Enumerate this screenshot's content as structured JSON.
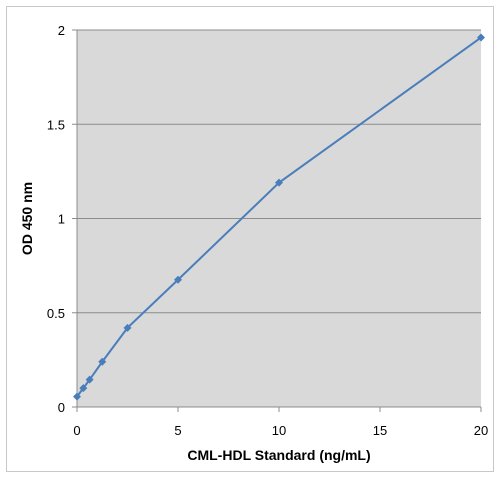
{
  "chart_data": {
    "type": "line",
    "title": "",
    "xlabel": "CML-HDL Standard (ng/mL)",
    "ylabel": "OD 450 nm",
    "xlim": [
      0,
      20
    ],
    "ylim": [
      0,
      2
    ],
    "xticks": [
      0,
      5,
      10,
      15,
      20
    ],
    "yticks": [
      0,
      0.5,
      1,
      1.5,
      2
    ],
    "xtick_labels": [
      "0",
      "5",
      "10",
      "15",
      "20"
    ],
    "ytick_labels": [
      "0",
      "0.5",
      "1",
      "1.5",
      "2"
    ],
    "grid": "horizontal",
    "legend": "none",
    "series": [
      {
        "color": "#4a7ebb",
        "marker": "diamond",
        "x": [
          0,
          0.313,
          0.625,
          1.25,
          2.5,
          5,
          10,
          20
        ],
        "y": [
          0.055,
          0.1,
          0.145,
          0.24,
          0.42,
          0.675,
          1.19,
          1.96
        ]
      }
    ],
    "plot_background": "#d9d9d9",
    "gridline_color": "#8c8c8c"
  }
}
